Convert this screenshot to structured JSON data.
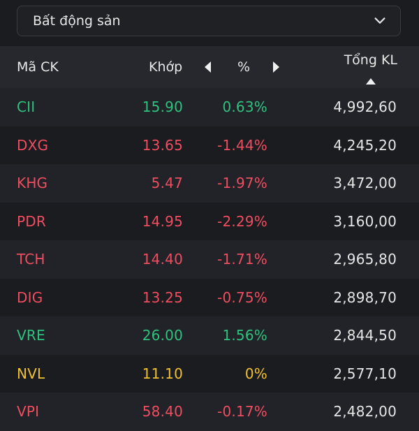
{
  "filter": {
    "selected": "Bất động sản"
  },
  "header": {
    "symbol": "Mã CK",
    "price": "Khớp",
    "percent": "%",
    "volume": "Tổng KL"
  },
  "colors": {
    "up": "#2ec27e",
    "down": "#ef4d60",
    "ref": "#f2c12e"
  },
  "rows": [
    {
      "symbol": "CII",
      "price": "15.90",
      "change": "0.63%",
      "volume": "4,992,60",
      "trend": "up"
    },
    {
      "symbol": "DXG",
      "price": "13.65",
      "change": "-1.44%",
      "volume": "4,245,20",
      "trend": "down"
    },
    {
      "symbol": "KHG",
      "price": "5.47",
      "change": "-1.97%",
      "volume": "3,472,00",
      "trend": "down"
    },
    {
      "symbol": "PDR",
      "price": "14.95",
      "change": "-2.29%",
      "volume": "3,160,00",
      "trend": "down"
    },
    {
      "symbol": "TCH",
      "price": "14.40",
      "change": "-1.71%",
      "volume": "2,965,80",
      "trend": "down"
    },
    {
      "symbol": "DIG",
      "price": "13.25",
      "change": "-0.75%",
      "volume": "2,898,70",
      "trend": "down"
    },
    {
      "symbol": "VRE",
      "price": "26.00",
      "change": "1.56%",
      "volume": "2,844,50",
      "trend": "up"
    },
    {
      "symbol": "NVL",
      "price": "11.10",
      "change": "0%",
      "volume": "2,577,10",
      "trend": "ref"
    },
    {
      "symbol": "VPI",
      "price": "58.40",
      "change": "-0.17%",
      "volume": "2,482,00",
      "trend": "down"
    }
  ]
}
